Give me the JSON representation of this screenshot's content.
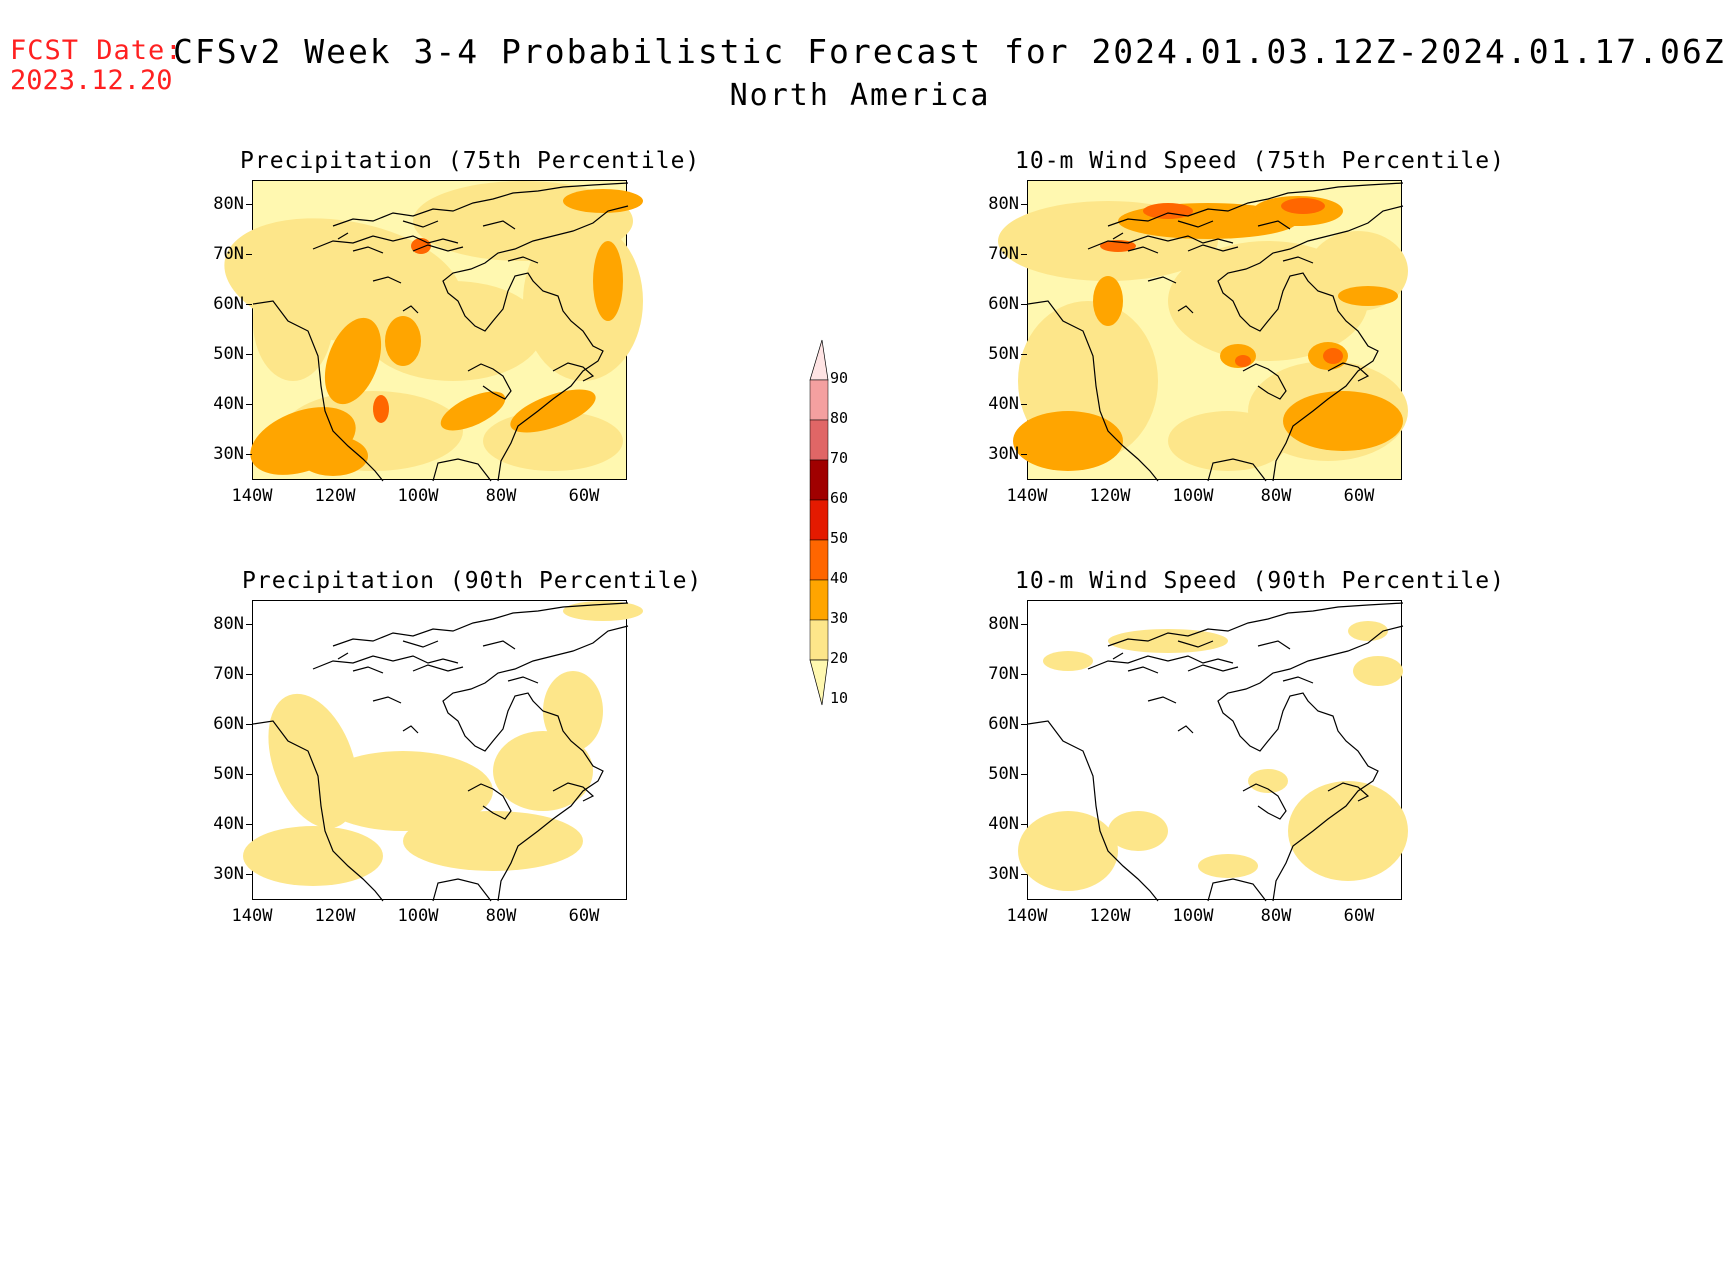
{
  "header": {
    "fcst_label": "FCST Date:",
    "fcst_date": "2023.12.20",
    "title": "CFSv2 Week 3-4 Probabilistic Forecast for 2024.01.03.12Z-2024.01.17.06Z",
    "subtitle": "North America"
  },
  "panels": [
    {
      "id": "precip-75",
      "title": "Precipitation (75th Percentile)",
      "intensity": "high",
      "variable": "precip"
    },
    {
      "id": "wind-75",
      "title": "10-m Wind Speed (75th Percentile)",
      "intensity": "high",
      "variable": "wind"
    },
    {
      "id": "precip-90",
      "title": "Precipitation (90th Percentile)",
      "intensity": "low",
      "variable": "precip"
    },
    {
      "id": "wind-90",
      "title": "10-m Wind Speed (90th Percentile)",
      "intensity": "low",
      "variable": "wind"
    }
  ],
  "axes": {
    "lat_labels": [
      "80N",
      "70N",
      "60N",
      "50N",
      "40N",
      "30N"
    ],
    "lon_labels": [
      "140W",
      "120W",
      "100W",
      "80W",
      "60W"
    ]
  },
  "colorbar": {
    "levels": [
      "10",
      "20",
      "30",
      "40",
      "50",
      "60",
      "70",
      "80",
      "90"
    ],
    "colors": [
      "#fff8b0",
      "#fde68a",
      "#ffa500",
      "#ff6600",
      "#e41a00",
      "#a00000",
      "#e06666",
      "#f4a0a0",
      "#ffe4e4"
    ]
  }
}
